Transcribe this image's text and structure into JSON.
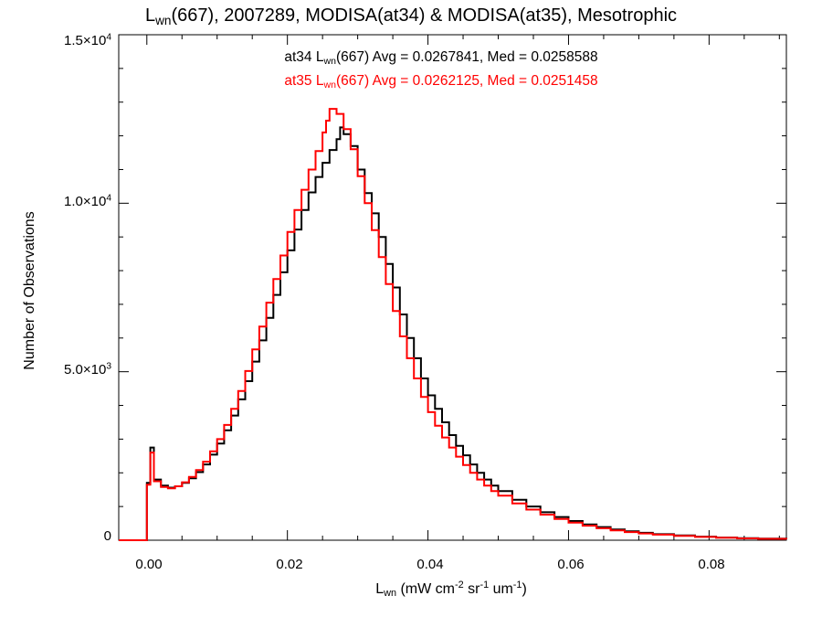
{
  "chart_data": {
    "type": "line",
    "step": true,
    "title": {
      "pre": "L",
      "sub": "wn",
      "post": "(667), 2007289, MODISA(at34) & MODISA(at35), Mesotrophic"
    },
    "xlabel": {
      "pre": "L",
      "sub": "wn",
      "units": " (mW cm",
      "sup1": "-2",
      "mid1": " sr",
      "sup2": "-1",
      "mid2": " um",
      "sup3": "-1",
      "end": ")"
    },
    "ylabel": "Number of Observations",
    "xlim": [
      -0.004,
      0.091
    ],
    "ylim": [
      0,
      15000
    ],
    "x_ticks": [
      0.0,
      0.02,
      0.04,
      0.06,
      0.08
    ],
    "x_tick_labels": [
      "0.00",
      "0.02",
      "0.04",
      "0.06",
      "0.08"
    ],
    "y_ticks": [
      0,
      5000,
      10000,
      15000
    ],
    "y_tick_labels": [
      {
        "mant": "0",
        "exp": ""
      },
      {
        "mant": "5.0×10",
        "exp": "3"
      },
      {
        "mant": "1.0×10",
        "exp": "4"
      },
      {
        "mant": "1.5×10",
        "exp": "4"
      }
    ],
    "stats": [
      {
        "pre": "at34 L",
        "sub": "wn",
        "post": "(667) Avg = 0.0267841, Med = 0.0258588",
        "color": "#000000"
      },
      {
        "pre": "at35 L",
        "sub": "wn",
        "post": "(667) Avg = 0.0262125, Med = 0.0251458",
        "color": "#ff0000"
      }
    ],
    "series": [
      {
        "label": "at34",
        "color": "#000000",
        "points": [
          [
            -0.004,
            0
          ],
          [
            -0.0001,
            0
          ],
          [
            0.0,
            1700
          ],
          [
            0.0005,
            2750
          ],
          [
            0.001,
            1800
          ],
          [
            0.002,
            1620
          ],
          [
            0.003,
            1560
          ],
          [
            0.004,
            1600
          ],
          [
            0.005,
            1700
          ],
          [
            0.006,
            1840
          ],
          [
            0.007,
            2020
          ],
          [
            0.008,
            2250
          ],
          [
            0.009,
            2540
          ],
          [
            0.01,
            2870
          ],
          [
            0.011,
            3260
          ],
          [
            0.012,
            3700
          ],
          [
            0.013,
            4180
          ],
          [
            0.014,
            4720
          ],
          [
            0.015,
            5300
          ],
          [
            0.016,
            5930
          ],
          [
            0.017,
            6600
          ],
          [
            0.018,
            7280
          ],
          [
            0.019,
            7950
          ],
          [
            0.02,
            8600
          ],
          [
            0.021,
            9220
          ],
          [
            0.022,
            9800
          ],
          [
            0.023,
            10320
          ],
          [
            0.024,
            10780
          ],
          [
            0.025,
            11200
          ],
          [
            0.026,
            11580
          ],
          [
            0.027,
            11900
          ],
          [
            0.0275,
            12250
          ],
          [
            0.028,
            12050
          ],
          [
            0.029,
            11700
          ],
          [
            0.03,
            11000
          ],
          [
            0.031,
            10300
          ],
          [
            0.032,
            9700
          ],
          [
            0.033,
            9000
          ],
          [
            0.034,
            8200
          ],
          [
            0.035,
            7500
          ],
          [
            0.036,
            6700
          ],
          [
            0.037,
            6000
          ],
          [
            0.038,
            5400
          ],
          [
            0.039,
            4800
          ],
          [
            0.04,
            4300
          ],
          [
            0.041,
            3900
          ],
          [
            0.042,
            3500
          ],
          [
            0.043,
            3120
          ],
          [
            0.044,
            2800
          ],
          [
            0.045,
            2520
          ],
          [
            0.046,
            2250
          ],
          [
            0.047,
            2000
          ],
          [
            0.048,
            1800
          ],
          [
            0.049,
            1620
          ],
          [
            0.05,
            1460
          ],
          [
            0.052,
            1200
          ],
          [
            0.054,
            1000
          ],
          [
            0.056,
            830
          ],
          [
            0.058,
            690
          ],
          [
            0.06,
            570
          ],
          [
            0.062,
            470
          ],
          [
            0.064,
            390
          ],
          [
            0.066,
            320
          ],
          [
            0.068,
            265
          ],
          [
            0.07,
            220
          ],
          [
            0.072,
            180
          ],
          [
            0.075,
            140
          ],
          [
            0.078,
            105
          ],
          [
            0.081,
            80
          ],
          [
            0.084,
            60
          ],
          [
            0.087,
            45
          ],
          [
            0.091,
            30
          ]
        ]
      },
      {
        "label": "at35",
        "color": "#ff0000",
        "points": [
          [
            -0.004,
            0
          ],
          [
            -0.0001,
            0
          ],
          [
            0.0,
            1650
          ],
          [
            0.0005,
            2600
          ],
          [
            0.001,
            1750
          ],
          [
            0.002,
            1580
          ],
          [
            0.003,
            1540
          ],
          [
            0.004,
            1600
          ],
          [
            0.005,
            1720
          ],
          [
            0.006,
            1880
          ],
          [
            0.007,
            2080
          ],
          [
            0.008,
            2330
          ],
          [
            0.009,
            2640
          ],
          [
            0.01,
            3000
          ],
          [
            0.011,
            3420
          ],
          [
            0.012,
            3900
          ],
          [
            0.013,
            4430
          ],
          [
            0.014,
            5020
          ],
          [
            0.015,
            5660
          ],
          [
            0.016,
            6340
          ],
          [
            0.017,
            7050
          ],
          [
            0.018,
            7750
          ],
          [
            0.019,
            8450
          ],
          [
            0.02,
            9150
          ],
          [
            0.021,
            9800
          ],
          [
            0.022,
            10400
          ],
          [
            0.023,
            11000
          ],
          [
            0.024,
            11550
          ],
          [
            0.025,
            12100
          ],
          [
            0.0255,
            12450
          ],
          [
            0.026,
            12800
          ],
          [
            0.027,
            12650
          ],
          [
            0.028,
            12200
          ],
          [
            0.029,
            11600
          ],
          [
            0.03,
            10800
          ],
          [
            0.031,
            10000
          ],
          [
            0.032,
            9200
          ],
          [
            0.033,
            8400
          ],
          [
            0.034,
            7600
          ],
          [
            0.035,
            6800
          ],
          [
            0.036,
            6050
          ],
          [
            0.037,
            5400
          ],
          [
            0.038,
            4800
          ],
          [
            0.039,
            4250
          ],
          [
            0.04,
            3800
          ],
          [
            0.041,
            3400
          ],
          [
            0.042,
            3050
          ],
          [
            0.043,
            2750
          ],
          [
            0.044,
            2480
          ],
          [
            0.045,
            2230
          ],
          [
            0.046,
            2000
          ],
          [
            0.047,
            1800
          ],
          [
            0.048,
            1620
          ],
          [
            0.049,
            1460
          ],
          [
            0.05,
            1320
          ],
          [
            0.052,
            1090
          ],
          [
            0.054,
            910
          ],
          [
            0.056,
            760
          ],
          [
            0.058,
            630
          ],
          [
            0.06,
            520
          ],
          [
            0.062,
            430
          ],
          [
            0.064,
            355
          ],
          [
            0.066,
            292
          ],
          [
            0.068,
            242
          ],
          [
            0.07,
            200
          ],
          [
            0.072,
            165
          ],
          [
            0.075,
            128
          ],
          [
            0.078,
            97
          ],
          [
            0.081,
            74
          ],
          [
            0.084,
            55
          ],
          [
            0.087,
            41
          ],
          [
            0.091,
            28
          ]
        ]
      }
    ]
  }
}
